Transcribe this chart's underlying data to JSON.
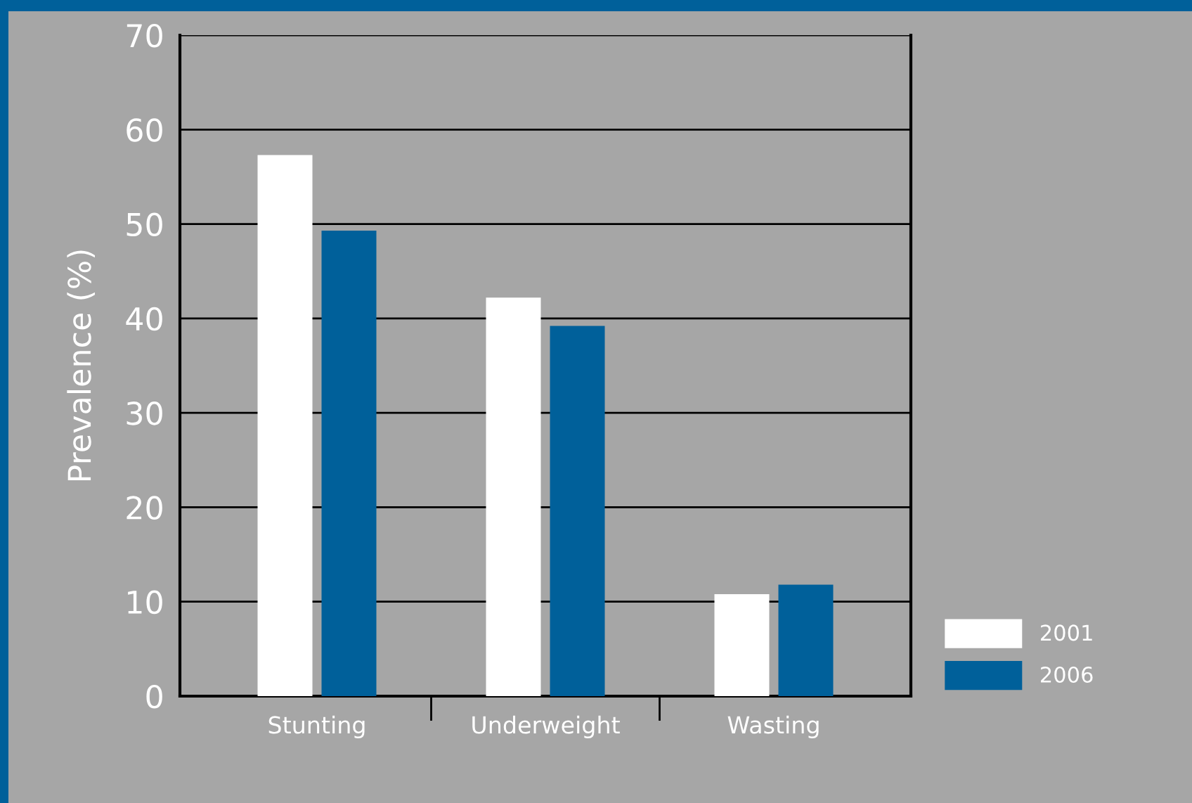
{
  "chart_data": {
    "type": "bar",
    "ylabel": "Prevalence (%)",
    "categories": [
      "Stunting",
      "Underweight",
      "Wasting"
    ],
    "series": [
      {
        "name": "2001",
        "color": "#ffffff",
        "values": [
          57.3,
          42.2,
          10.8
        ]
      },
      {
        "name": "2006",
        "color": "#00609a",
        "values": [
          49.3,
          39.2,
          11.8
        ]
      }
    ],
    "ylim": [
      0,
      70
    ],
    "yticks": [
      0,
      10,
      20,
      30,
      40,
      50,
      60,
      70
    ],
    "grid": "y",
    "legend": "bottom right"
  }
}
